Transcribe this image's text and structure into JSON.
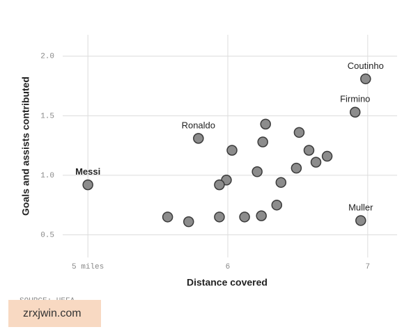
{
  "chart_data": {
    "type": "scatter",
    "x_label": "Distance covered",
    "y_label": "Goals and assists contributed",
    "source": "SOURCE: UEFA",
    "watermark": "zrxjwin.com",
    "x": [
      5.0,
      6.985,
      6.91,
      5.79,
      6.95,
      6.27,
      6.51,
      6.03,
      6.25,
      6.58,
      6.71,
      6.63,
      6.49,
      6.21,
      5.99,
      5.94,
      6.38,
      6.35,
      5.57,
      5.72,
      5.94,
      6.12,
      6.24
    ],
    "values": [
      0.92,
      1.81,
      1.53,
      1.31,
      0.62,
      1.43,
      1.36,
      1.21,
      1.28,
      1.21,
      1.16,
      1.11,
      1.06,
      1.03,
      0.96,
      0.92,
      0.94,
      0.75,
      0.65,
      0.61,
      0.65,
      0.65,
      0.66
    ],
    "point_labels": [
      "Messi",
      "Coutinho",
      "Firmino",
      "Ronaldo",
      "Muller",
      null,
      null,
      null,
      null,
      null,
      null,
      null,
      null,
      null,
      null,
      null,
      null,
      null,
      null,
      null,
      null,
      null,
      null
    ],
    "color": "#8c8c8c",
    "xlim": [
      4.82,
      7.21
    ],
    "ylim": [
      0.31,
      2.18
    ],
    "xticks": [
      {
        "value": 5,
        "label": "5 miles"
      },
      6,
      7
    ],
    "yticks": [
      {
        "value": 2.0,
        "label": "2.0"
      },
      {
        "value": 1.5,
        "label": "1.5"
      },
      {
        "value": 1.0,
        "label": "1.0"
      },
      {
        "value": 0.5,
        "label": "0.5"
      }
    ],
    "grid": true
  }
}
